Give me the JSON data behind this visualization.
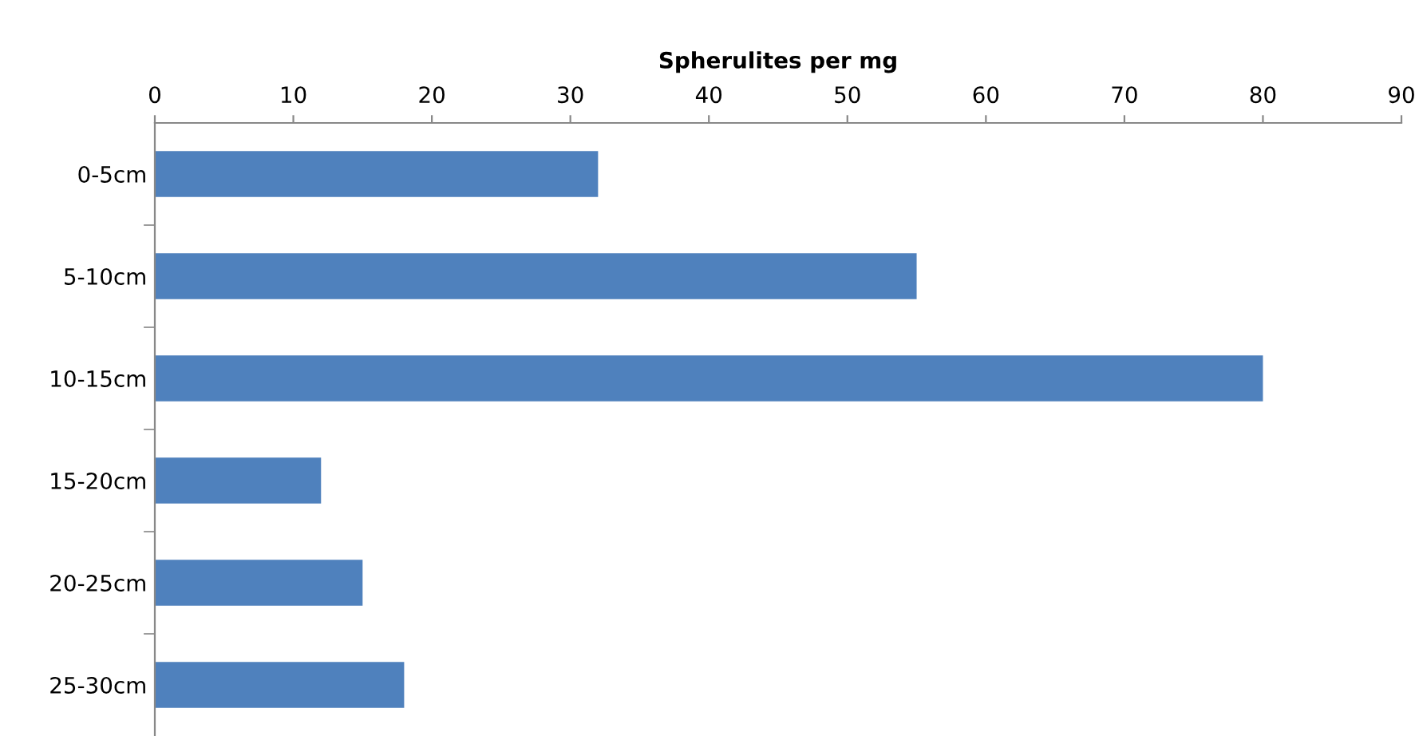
{
  "chart_data": {
    "type": "bar",
    "orientation": "horizontal",
    "xlabel": "Spherulites per mg",
    "categories": [
      "0-5cm",
      "5-10cm",
      "10-15cm",
      "15-20cm",
      "20-25cm",
      "25-30cm"
    ],
    "values": [
      32,
      55,
      80,
      12,
      15,
      18
    ],
    "color": "#4f81bd",
    "xlim": [
      0,
      90
    ],
    "xticks": [
      0,
      10,
      20,
      30,
      40,
      50,
      60,
      70,
      80,
      90
    ],
    "grid": false,
    "legend": false
  }
}
